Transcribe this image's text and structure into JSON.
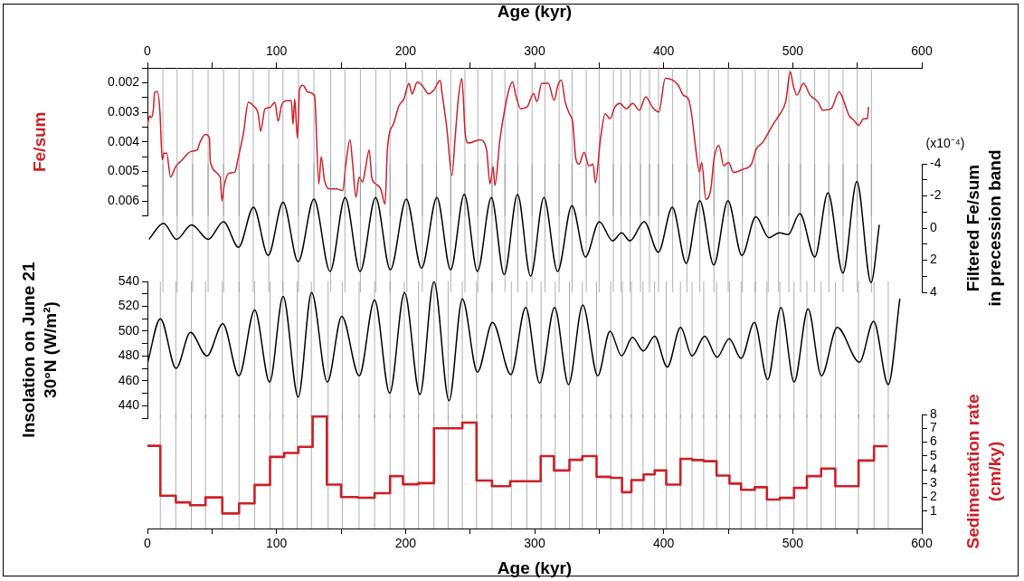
{
  "chart_data": [
    {
      "type": "line",
      "ylabel": "Fe/sum",
      "x2label": "Age (kyr)",
      "x2lim": [
        0,
        600
      ],
      "xlim": [
        0,
        600
      ],
      "tick_labels": "y",
      "x2ticks": [
        0,
        {
          "value": 50,
          "label": null
        },
        100,
        {
          "value": 150,
          "label": null
        },
        200,
        {
          "value": 250,
          "label": null
        },
        300,
        {
          "value": 350,
          "label": null
        },
        400,
        {
          "value": 450,
          "label": null
        },
        500,
        {
          "value": 550,
          "label": null
        },
        600
      ],
      "ylim": [
        0.0065,
        0.0015
      ],
      "yticks": [
        {
          "value": 0.0015,
          "label": null
        },
        0.002,
        {
          "value": 0.0025,
          "label": null
        },
        0.003,
        {
          "value": 0.0035,
          "label": null
        },
        0.004,
        {
          "value": 0.0045,
          "label": null
        },
        0.005,
        {
          "value": 0.0055,
          "label": null
        },
        0.006,
        {
          "value": 0.0065,
          "label": null
        }
      ],
      "marker": "none",
      "x": [
        0,
        1.8,
        3.1,
        4.6,
        5.6,
        7.7,
        9.7,
        11.5,
        12.8,
        14.9,
        17.9,
        21.8,
        26.9,
        33.3,
        38.5,
        41,
        44.9,
        48,
        48.7,
        56.4,
        57.7,
        59.5,
        62.8,
        67.9,
        69.7,
        74.4,
        78.2,
        82,
        85.9,
        87.7,
        91,
        94.9,
        98.7,
        101.3,
        103.8,
        107.7,
        111.5,
        112.8,
        114.1,
        116.2,
        117.9,
        120.5,
        124.4,
        129.5,
        132.8,
        134.6,
        137.2,
        141,
        146.2,
        151.3,
        153.8,
        156.9,
        159,
        161.5,
        164.1,
        166.7,
        168.7,
        171.8,
        173.8,
        176.9,
        180.8,
        184.1,
        185.9,
        191,
        194.9,
        198.7,
        202.6,
        205.1,
        209,
        212.8,
        217.9,
        221.8,
        226.9,
        228.2,
        232.1,
        235.9,
        238.5,
        241,
        243.6,
        246.2,
        248.7,
        257.7,
        262.8,
        265.4,
        267.9,
        269.2,
        273.1,
        276.9,
        280.4,
        282.9,
        285.4,
        289.2,
        294.2,
        299.2,
        301.8,
        305.5,
        310.6,
        315.1,
        318.1,
        320.7,
        323.7,
        327,
        329.5,
        332,
        334.5,
        338.3,
        342.1,
        345.3,
        347.1,
        350.9,
        354.7,
        358.4,
        362.2,
        366,
        371,
        376.1,
        381.1,
        386.1,
        391.2,
        393.7,
        396.2,
        401.3,
        406.3,
        411.3,
        415.1,
        418.9,
        421.4,
        425.2,
        427.7,
        429.5,
        432.7,
        436.5,
        439,
        442.8,
        446.6,
        450.3,
        454.1,
        461.7,
        468,
        471.8,
        476.8,
        484.4,
        489.4,
        494.5,
        498.2,
        500.3,
        503.3,
        508.3,
        513.4,
        519.6,
        523.4,
        529.7,
        536,
        539.8,
        543.6,
        547.4,
        551.1,
        554.9,
        557.9,
        558.7
      ],
      "series": [
        {
          "color": "#cc2027",
          "values": [
            0.00344,
            0.00312,
            0.00318,
            0.00289,
            0.00232,
            0.0023,
            0.003,
            0.00461,
            0.00438,
            0.00438,
            0.00519,
            0.00484,
            0.00461,
            0.00433,
            0.00427,
            0.00398,
            0.00375,
            0.00387,
            0.00467,
            0.00519,
            0.00599,
            0.00547,
            0.00507,
            0.00501,
            0.00467,
            0.0037,
            0.00266,
            0.00278,
            0.00307,
            0.00364,
            0.00289,
            0.00284,
            0.00266,
            0.0033,
            0.00278,
            0.00261,
            0.00261,
            0.00341,
            0.00255,
            0.00387,
            0.00221,
            0.00209,
            0.00232,
            0.00244,
            0.00542,
            0.0045,
            0.0053,
            0.00559,
            0.00559,
            0.00564,
            0.00473,
            0.00393,
            0.00473,
            0.00587,
            0.00519,
            0.00536,
            0.00496,
            0.00427,
            0.00519,
            0.00542,
            0.00559,
            0.0061,
            0.00427,
            0.00335,
            0.00278,
            0.00255,
            0.00203,
            0.00238,
            0.00198,
            0.00209,
            0.00238,
            0.00226,
            0.00192,
            0.00232,
            0.00358,
            0.00513,
            0.00381,
            0.00249,
            0.00186,
            0.0037,
            0.00404,
            0.00393,
            0.00427,
            0.00542,
            0.00484,
            0.00547,
            0.00393,
            0.00289,
            0.00219,
            0.00197,
            0.00242,
            0.00288,
            0.00282,
            0.00236,
            0.00264,
            0.00202,
            0.00202,
            0.00259,
            0.00208,
            0.00191,
            0.00265,
            0.00305,
            0.00333,
            0.00458,
            0.00475,
            0.00435,
            0.00481,
            0.00475,
            0.00538,
            0.00395,
            0.00305,
            0.00322,
            0.00282,
            0.0027,
            0.00288,
            0.0027,
            0.00293,
            0.00248,
            0.00282,
            0.00293,
            0.00299,
            0.00185,
            0.0019,
            0.00208,
            0.00242,
            0.00253,
            0.00299,
            0.00435,
            0.00503,
            0.00469,
            0.00594,
            0.0056,
            0.00458,
            0.00412,
            0.00481,
            0.00469,
            0.00503,
            0.00492,
            0.00475,
            0.00424,
            0.00401,
            0.00344,
            0.0031,
            0.00265,
            0.00163,
            0.00208,
            0.00242,
            0.00202,
            0.00242,
            0.00265,
            0.00293,
            0.00288,
            0.00231,
            0.00265,
            0.0031,
            0.00327,
            0.00344,
            0.00322,
            0.00322,
            0.00282
          ]
        }
      ],
      "ref_lines": [
        {
          "axis": "x",
          "value": 12
        },
        {
          "axis": "x",
          "value": 23
        },
        {
          "axis": "x",
          "value": 35
        },
        {
          "axis": "x",
          "value": 47
        },
        {
          "axis": "x",
          "value": 59
        },
        {
          "axis": "x",
          "value": 71
        },
        {
          "axis": "x",
          "value": 82
        },
        {
          "axis": "x",
          "value": 94
        },
        {
          "axis": "x",
          "value": 105
        },
        {
          "axis": "x",
          "value": 117
        },
        {
          "axis": "x",
          "value": 129
        },
        {
          "axis": "x",
          "value": 142
        },
        {
          "axis": "x",
          "value": 153
        },
        {
          "axis": "x",
          "value": 165
        },
        {
          "axis": "x",
          "value": 177
        },
        {
          "axis": "x",
          "value": 188
        },
        {
          "axis": "x",
          "value": 201
        },
        {
          "axis": "x",
          "value": 213
        },
        {
          "axis": "x",
          "value": 224
        },
        {
          "axis": "x",
          "value": 235
        },
        {
          "axis": "x",
          "value": 246
        },
        {
          "axis": "x",
          "value": 256
        },
        {
          "axis": "x",
          "value": 267
        },
        {
          "axis": "x",
          "value": 277
        },
        {
          "axis": "x",
          "value": 287
        },
        {
          "axis": "x",
          "value": 298
        },
        {
          "axis": "x",
          "value": 308
        },
        {
          "axis": "x",
          "value": 319
        },
        {
          "axis": "x",
          "value": 329
        },
        {
          "axis": "x",
          "value": 340
        },
        {
          "axis": "x",
          "value": 350
        },
        {
          "axis": "x",
          "value": 361
        },
        {
          "axis": "x",
          "value": 367
        },
        {
          "axis": "x",
          "value": 374
        },
        {
          "axis": "x",
          "value": 382
        },
        {
          "axis": "x",
          "value": 389
        },
        {
          "axis": "x",
          "value": 396
        },
        {
          "axis": "x",
          "value": 407
        },
        {
          "axis": "x",
          "value": 418
        },
        {
          "axis": "x",
          "value": 428
        },
        {
          "axis": "x",
          "value": 439
        },
        {
          "axis": "x",
          "value": 450
        },
        {
          "axis": "x",
          "value": 461
        },
        {
          "axis": "x",
          "value": 471
        },
        {
          "axis": "x",
          "value": 481
        },
        {
          "axis": "x",
          "value": 489
        },
        {
          "axis": "x",
          "value": 497
        },
        {
          "axis": "x",
          "value": 506
        },
        {
          "axis": "x",
          "value": 517
        },
        {
          "axis": "x",
          "value": 528
        },
        {
          "axis": "x",
          "value": 539
        },
        {
          "axis": "x",
          "value": 550
        },
        {
          "axis": "x",
          "value": 561
        }
      ]
    },
    {
      "type": "line",
      "y2label": "Filtered Fe/sum\nin precession band",
      "annotations": [
        "(x10⁻⁴)"
      ],
      "xlim": [
        0,
        600
      ],
      "tick_labels": "y",
      "y2lim": [
        4,
        -4
      ],
      "y2ticks": [
        -4,
        {
          "value": -3,
          "label": null
        },
        -2,
        {
          "value": -1,
          "label": null
        },
        0,
        {
          "value": 1,
          "label": null
        },
        2,
        {
          "value": 3,
          "label": null
        },
        4
      ],
      "marker": "none",
      "x": [
        1.2,
        12.4,
        22.6,
        34.2,
        47.2,
        58.9,
        70.6,
        82.2,
        93.5,
        105.1,
        116.8,
        129,
        141.5,
        153.2,
        164.8,
        176.8,
        188.2,
        200.6,
        212.4,
        224.3,
        234.9,
        245.5,
        255.7,
        266.5,
        276.4,
        286.8,
        296.9,
        307.2,
        317.8,
        328.9,
        339.4,
        350.1,
        360.5,
        367.4,
        373.8,
        384.9,
        395.9,
        406.7,
        417.5,
        428,
        438.8,
        449.8,
        460.6,
        471.4,
        481.6,
        489.6,
        496.5,
        505.5,
        517.1,
        527.3,
        538.9,
        549.7,
        560.7,
        567.1
      ],
      "series": [
        {
          "color": "#000000",
          "axis": "y2",
          "values": [
            0.7,
            -0.3,
            0.7,
            -0.2,
            0.7,
            -0.4,
            1.2,
            -1.3,
            1.7,
            -1.6,
            2.1,
            -1.8,
            2.7,
            -1.9,
            2.7,
            -1.9,
            2.6,
            -1.8,
            2.5,
            -1.9,
            2.6,
            -2.1,
            2.7,
            -1.9,
            2.9,
            -2.1,
            3.0,
            -1.9,
            2.7,
            -1.4,
            1.8,
            -0.4,
            0.8,
            0.3,
            0.8,
            -0.4,
            1.5,
            -1.3,
            2.2,
            -1.7,
            2.3,
            -1.7,
            1.7,
            -0.7,
            0.6,
            0.3,
            0.4,
            -0.9,
            1.8,
            -2.2,
            2.8,
            -2.9,
            3.4,
            -0.2
          ]
        }
      ],
      "ref_lines": [
        {
          "axis": "x",
          "value": 12
        },
        {
          "axis": "x",
          "value": 23
        },
        {
          "axis": "x",
          "value": 35
        },
        {
          "axis": "x",
          "value": 47
        },
        {
          "axis": "x",
          "value": 59
        },
        {
          "axis": "x",
          "value": 71
        },
        {
          "axis": "x",
          "value": 82
        },
        {
          "axis": "x",
          "value": 94
        },
        {
          "axis": "x",
          "value": 105
        },
        {
          "axis": "x",
          "value": 117
        },
        {
          "axis": "x",
          "value": 129
        },
        {
          "axis": "x",
          "value": 142
        },
        {
          "axis": "x",
          "value": 153
        },
        {
          "axis": "x",
          "value": 165
        },
        {
          "axis": "x",
          "value": 177
        },
        {
          "axis": "x",
          "value": 188
        },
        {
          "axis": "x",
          "value": 201
        },
        {
          "axis": "x",
          "value": 213
        },
        {
          "axis": "x",
          "value": 224
        },
        {
          "axis": "x",
          "value": 235
        },
        {
          "axis": "x",
          "value": 246
        },
        {
          "axis": "x",
          "value": 256
        },
        {
          "axis": "x",
          "value": 267
        },
        {
          "axis": "x",
          "value": 277
        },
        {
          "axis": "x",
          "value": 287
        },
        {
          "axis": "x",
          "value": 298
        },
        {
          "axis": "x",
          "value": 308
        },
        {
          "axis": "x",
          "value": 319
        },
        {
          "axis": "x",
          "value": 329
        },
        {
          "axis": "x",
          "value": 340
        },
        {
          "axis": "x",
          "value": 350
        },
        {
          "axis": "x",
          "value": 361
        },
        {
          "axis": "x",
          "value": 367
        },
        {
          "axis": "x",
          "value": 374
        },
        {
          "axis": "x",
          "value": 382
        },
        {
          "axis": "x",
          "value": 389
        },
        {
          "axis": "x",
          "value": 396
        },
        {
          "axis": "x",
          "value": 407
        },
        {
          "axis": "x",
          "value": 418
        },
        {
          "axis": "x",
          "value": 428
        },
        {
          "axis": "x",
          "value": 439
        },
        {
          "axis": "x",
          "value": 450
        },
        {
          "axis": "x",
          "value": 461
        },
        {
          "axis": "x",
          "value": 471
        },
        {
          "axis": "x",
          "value": 481
        },
        {
          "axis": "x",
          "value": 489
        },
        {
          "axis": "x",
          "value": 497
        },
        {
          "axis": "x",
          "value": 506
        },
        {
          "axis": "x",
          "value": 517
        },
        {
          "axis": "x",
          "value": 528
        },
        {
          "axis": "x",
          "value": 539
        },
        {
          "axis": "x",
          "value": 550
        },
        {
          "axis": "x",
          "value": 561
        }
      ]
    },
    {
      "type": "line",
      "ylabel": "Insolation on June 21\n30°N (W/m²)",
      "xlim": [
        0,
        600
      ],
      "tick_labels": "y",
      "ylim": [
        430,
        540
      ],
      "yticks": [
        {
          "value": 430,
          "label": null
        },
        440,
        {
          "value": 450,
          "label": null
        },
        460,
        {
          "value": 470,
          "label": null
        },
        480,
        {
          "value": 490,
          "label": null
        },
        500,
        {
          "value": 510,
          "label": null
        },
        520,
        {
          "value": 530,
          "label": null
        },
        540
      ],
      "marker": "none",
      "x": [
        0,
        10,
        22.2,
        33.3,
        46.1,
        58.4,
        70.9,
        83.1,
        94.7,
        105.1,
        116.8,
        127.2,
        139.4,
        150.6,
        164.1,
        176,
        187.7,
        199.2,
        211.1,
        222,
        233.7,
        244,
        255.7,
        267.4,
        281.6,
        293.1,
        303.9,
        315.5,
        326.3,
        337.3,
        348.9,
        358.4,
        367.4,
        375.8,
        384.3,
        393,
        402.8,
        413.1,
        422,
        431.8,
        441.3,
        450.8,
        460,
        470.3,
        480.6,
        490.9,
        501.1,
        511.9,
        522.2,
        534.5,
        551.7,
        562.7,
        574,
        583
      ],
      "series": [
        {
          "color": "#000000",
          "values": [
            474,
            510,
            470,
            499,
            480,
            506,
            464,
            517,
            459,
            528,
            447,
            531,
            459,
            512,
            464,
            525,
            450,
            531,
            449,
            540,
            444,
            526,
            467,
            507,
            465,
            519,
            458,
            519,
            457,
            521,
            464,
            500,
            480,
            495,
            484,
            496,
            471,
            503,
            480,
            496,
            479,
            494,
            478,
            507,
            461,
            519,
            459,
            518,
            464,
            503,
            475,
            508,
            457,
            526
          ]
        }
      ],
      "ref_lines": [
        {
          "axis": "x",
          "value": 10
        },
        {
          "axis": "x",
          "value": 22
        },
        {
          "axis": "x",
          "value": 34
        },
        {
          "axis": "x",
          "value": 45
        },
        {
          "axis": "x",
          "value": 58
        },
        {
          "axis": "x",
          "value": 71
        },
        {
          "axis": "x",
          "value": 83
        },
        {
          "axis": "x",
          "value": 95
        },
        {
          "axis": "x",
          "value": 105
        },
        {
          "axis": "x",
          "value": 116
        },
        {
          "axis": "x",
          "value": 127
        },
        {
          "axis": "x",
          "value": 140
        },
        {
          "axis": "x",
          "value": 151
        },
        {
          "axis": "x",
          "value": 164
        },
        {
          "axis": "x",
          "value": 176
        },
        {
          "axis": "x",
          "value": 188
        },
        {
          "axis": "x",
          "value": 199
        },
        {
          "axis": "x",
          "value": 210
        },
        {
          "axis": "x",
          "value": 222
        },
        {
          "axis": "x",
          "value": 233
        },
        {
          "axis": "x",
          "value": 244
        },
        {
          "axis": "x",
          "value": 255
        },
        {
          "axis": "x",
          "value": 267
        },
        {
          "axis": "x",
          "value": 282
        },
        {
          "axis": "x",
          "value": 294
        },
        {
          "axis": "x",
          "value": 305
        },
        {
          "axis": "x",
          "value": 316
        },
        {
          "axis": "x",
          "value": 327
        },
        {
          "axis": "x",
          "value": 337
        },
        {
          "axis": "x",
          "value": 348
        },
        {
          "axis": "x",
          "value": 359
        },
        {
          "axis": "x",
          "value": 368
        },
        {
          "axis": "x",
          "value": 375
        },
        {
          "axis": "x",
          "value": 384
        },
        {
          "axis": "x",
          "value": 393
        },
        {
          "axis": "x",
          "value": 402
        },
        {
          "axis": "x",
          "value": 413
        },
        {
          "axis": "x",
          "value": 422
        },
        {
          "axis": "x",
          "value": 431
        },
        {
          "axis": "x",
          "value": 441
        },
        {
          "axis": "x",
          "value": 451
        },
        {
          "axis": "x",
          "value": 460
        },
        {
          "axis": "x",
          "value": 471
        },
        {
          "axis": "x",
          "value": 480
        },
        {
          "axis": "x",
          "value": 490
        },
        {
          "axis": "x",
          "value": 501
        },
        {
          "axis": "x",
          "value": 511
        },
        {
          "axis": "x",
          "value": 522
        },
        {
          "axis": "x",
          "value": 533
        },
        {
          "axis": "x",
          "value": 551
        },
        {
          "axis": "x",
          "value": 563
        },
        {
          "axis": "x",
          "value": 574
        }
      ]
    },
    {
      "type": "step",
      "xlabel": "Age (kyr)",
      "y2label": "Sedimentation rate\n(cm/ky)",
      "xlim": [
        0,
        600
      ],
      "xticks": [
        0,
        {
          "value": 50,
          "label": null
        },
        100,
        {
          "value": 150,
          "label": null
        },
        200,
        {
          "value": 250,
          "label": null
        },
        300,
        {
          "value": 350,
          "label": null
        },
        400,
        {
          "value": 450,
          "label": null
        },
        500,
        {
          "value": 550,
          "label": null
        },
        600
      ],
      "y2lim": [
        -0.25,
        8
      ],
      "y2ticks": [
        1,
        2,
        3,
        4,
        5,
        6,
        7,
        8
      ],
      "marker": "none",
      "x": [
        0,
        10,
        22,
        33,
        45,
        58,
        71,
        83,
        95,
        106,
        117,
        128,
        139,
        150,
        163,
        176,
        188,
        198,
        210,
        222,
        244,
        255,
        267,
        281,
        304.7,
        315,
        327,
        337,
        348,
        359,
        367.7,
        375,
        384.5,
        393,
        402,
        413,
        422,
        431,
        441,
        451,
        460,
        470.5,
        480,
        490,
        501,
        511,
        522,
        533,
        551,
        563,
        573.6
      ],
      "series": [
        {
          "color": "#cc2027",
          "axis": "y2",
          "values": [
            5.73,
            2.12,
            1.64,
            1.44,
            2.0,
            0.84,
            1.57,
            2.9,
            4.93,
            5.22,
            5.66,
            7.85,
            2.93,
            2.03,
            1.98,
            2.3,
            3.54,
            2.95,
            3.03,
            7.0,
            7.41,
            3.22,
            2.81,
            3.17,
            4.99,
            3.95,
            4.72,
            4.99,
            3.49,
            3.42,
            2.38,
            3.25,
            3.66,
            3.95,
            2.93,
            4.79,
            4.7,
            4.62,
            3.58,
            3.0,
            2.55,
            2.74,
            1.85,
            1.97,
            2.69,
            3.54,
            4.09,
            2.81,
            4.67,
            5.71,
            5.71
          ]
        }
      ],
      "ref_lines": [
        {
          "axis": "x",
          "value": 10
        },
        {
          "axis": "x",
          "value": 22
        },
        {
          "axis": "x",
          "value": 34
        },
        {
          "axis": "x",
          "value": 45
        },
        {
          "axis": "x",
          "value": 58
        },
        {
          "axis": "x",
          "value": 71
        },
        {
          "axis": "x",
          "value": 83
        },
        {
          "axis": "x",
          "value": 95
        },
        {
          "axis": "x",
          "value": 105
        },
        {
          "axis": "x",
          "value": 116
        },
        {
          "axis": "x",
          "value": 127
        },
        {
          "axis": "x",
          "value": 140
        },
        {
          "axis": "x",
          "value": 151
        },
        {
          "axis": "x",
          "value": 164
        },
        {
          "axis": "x",
          "value": 176
        },
        {
          "axis": "x",
          "value": 188
        },
        {
          "axis": "x",
          "value": 199
        },
        {
          "axis": "x",
          "value": 210
        },
        {
          "axis": "x",
          "value": 222
        },
        {
          "axis": "x",
          "value": 233
        },
        {
          "axis": "x",
          "value": 244
        },
        {
          "axis": "x",
          "value": 255
        },
        {
          "axis": "x",
          "value": 267
        },
        {
          "axis": "x",
          "value": 282
        },
        {
          "axis": "x",
          "value": 294
        },
        {
          "axis": "x",
          "value": 305
        },
        {
          "axis": "x",
          "value": 316
        },
        {
          "axis": "x",
          "value": 327
        },
        {
          "axis": "x",
          "value": 337
        },
        {
          "axis": "x",
          "value": 348
        },
        {
          "axis": "x",
          "value": 359
        },
        {
          "axis": "x",
          "value": 368
        },
        {
          "axis": "x",
          "value": 375
        },
        {
          "axis": "x",
          "value": 384
        },
        {
          "axis": "x",
          "value": 393
        },
        {
          "axis": "x",
          "value": 402
        },
        {
          "axis": "x",
          "value": 413
        },
        {
          "axis": "x",
          "value": 422
        },
        {
          "axis": "x",
          "value": 431
        },
        {
          "axis": "x",
          "value": 441
        },
        {
          "axis": "x",
          "value": 451
        },
        {
          "axis": "x",
          "value": 460
        },
        {
          "axis": "x",
          "value": 471
        },
        {
          "axis": "x",
          "value": 480
        },
        {
          "axis": "x",
          "value": 490
        },
        {
          "axis": "x",
          "value": 501
        },
        {
          "axis": "x",
          "value": 511
        },
        {
          "axis": "x",
          "value": 522
        },
        {
          "axis": "x",
          "value": 533
        },
        {
          "axis": "x",
          "value": 551
        },
        {
          "axis": "x",
          "value": 563
        },
        {
          "axis": "x",
          "value": 574
        }
      ]
    }
  ]
}
